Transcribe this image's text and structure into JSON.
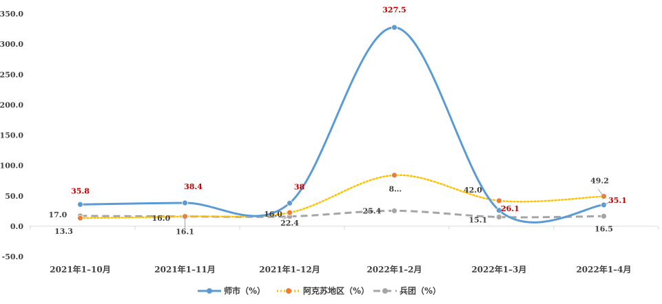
{
  "chart_data": {
    "type": "line",
    "categories": [
      "2021年1–10月",
      "2021年1–11月",
      "2021年1–12月",
      "2022年1–2月",
      "2022年1–3月",
      "2022年1–4月"
    ],
    "ylim": [
      -50,
      350
    ],
    "yticks": [
      "-50.0",
      "0.0",
      "50.0",
      "100.0",
      "150.0",
      "200.0",
      "250.0",
      "300.0",
      "350.0"
    ],
    "grid": false,
    "legend_position": "bottom",
    "series": [
      {
        "name": "师市（%）",
        "values": [
          35.8,
          38.4,
          38,
          327.5,
          26.1,
          35.1
        ],
        "labels": [
          "35.8",
          "38.4",
          "38",
          "327.5",
          "26.1",
          "35.1"
        ],
        "color": "#5b9bd5",
        "label_color": "#c00000",
        "style": "solid"
      },
      {
        "name": "阿克苏地区（%）",
        "values": [
          13.3,
          16.1,
          22.4,
          84,
          42.0,
          49.2
        ],
        "labels": [
          "13.3",
          "16.1",
          "22.4",
          "8…",
          "42.0",
          "49.2"
        ],
        "color": "#ffc000",
        "marker_color": "#ed7d31",
        "label_color": "#404040",
        "style": "dotted"
      },
      {
        "name": "兵团（%）",
        "values": [
          17.0,
          16.0,
          16.0,
          25.4,
          15.1,
          16.5
        ],
        "labels": [
          "17.0",
          "16.0",
          "16.0",
          "25.4",
          "15.1",
          "16.5"
        ],
        "color": "#a5a5a5",
        "label_color": "#404040",
        "style": "dashed"
      }
    ]
  }
}
